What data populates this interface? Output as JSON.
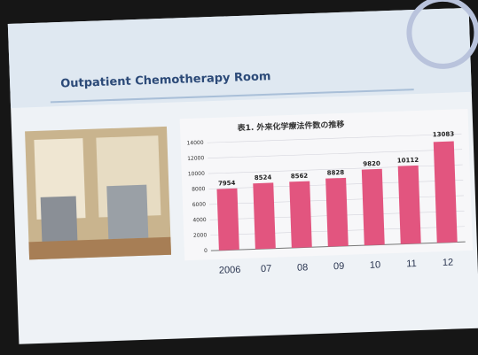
{
  "slide": {
    "heading": "Outpatient Chemotherapy Room"
  },
  "chart_data": {
    "type": "bar",
    "title": "表1. 外来化学療法件数の推移",
    "categories": [
      "2006",
      "07",
      "08",
      "09",
      "10",
      "11",
      "12"
    ],
    "values": [
      7954,
      8524,
      8562,
      8828,
      9820,
      10112,
      13083
    ],
    "color": "#e2557f",
    "ylim": [
      0,
      14000
    ],
    "yticks": [
      0,
      2000,
      4000,
      6000,
      8000,
      10000,
      12000,
      14000
    ],
    "grid": true
  }
}
